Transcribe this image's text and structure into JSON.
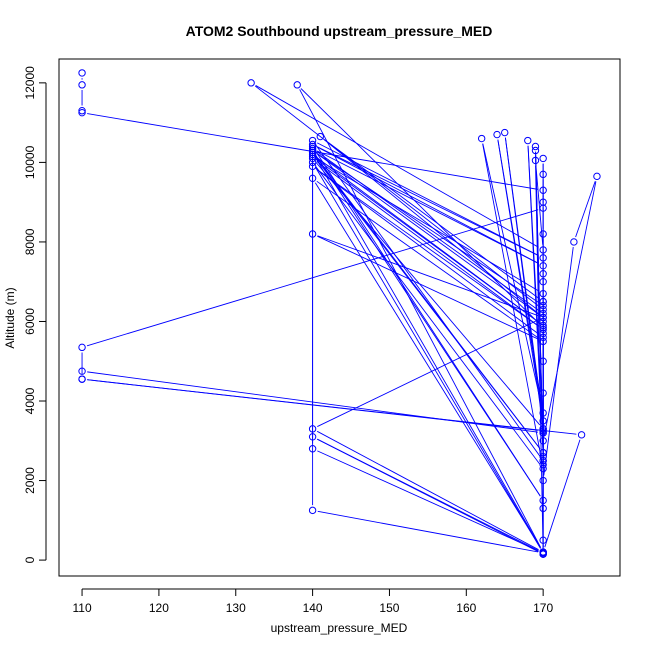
{
  "chart_data": {
    "type": "line",
    "title": "ATOM2 Southbound upstream_pressure_MED",
    "xlabel": "upstream_pressure_MED",
    "ylabel": "Altitude (m)",
    "xlim": [
      107,
      180
    ],
    "ylim": [
      -400,
      12600
    ],
    "xticks": [
      110,
      120,
      130,
      140,
      150,
      160,
      170
    ],
    "xtick_labels": [
      "110",
      "120",
      "130",
      "140",
      "150",
      "160",
      "170"
    ],
    "yticks": [
      0,
      2000,
      4000,
      6000,
      8000,
      10000,
      12000
    ],
    "ytick_labels": [
      "0",
      "2000",
      "4000",
      "6000",
      "8000",
      "10000",
      "12000"
    ],
    "series_color": "#0000ff",
    "marker": "open-circle",
    "grid": false,
    "x": [
      110,
      110,
      110,
      110,
      170,
      170,
      110,
      110,
      170,
      170,
      110,
      110,
      175,
      170,
      170,
      169,
      170,
      132,
      170,
      170,
      170,
      170,
      170,
      138,
      170,
      170,
      170,
      170,
      140,
      170,
      140,
      170,
      140,
      170,
      170,
      140,
      170,
      141,
      170,
      170,
      140,
      170,
      140,
      170,
      140,
      170,
      170,
      140,
      170,
      140,
      170,
      170,
      140,
      170,
      140,
      170,
      140,
      170,
      170,
      140,
      170,
      140,
      140,
      170,
      140,
      140,
      170,
      140,
      170,
      162,
      170,
      164,
      170,
      165,
      170,
      168,
      170,
      169,
      170,
      169,
      170,
      170,
      170,
      170,
      170,
      170,
      170,
      174,
      177,
      170,
      170,
      170,
      170,
      170,
      170,
      170
    ],
    "y": [
      12250,
      11950,
      11300,
      11250,
      9300,
      8850,
      5350,
      4550,
      3250,
      3200,
      4750,
      4550,
      3150,
      200,
      150,
      10050,
      7800,
      12000,
      6300,
      3200,
      150,
      500,
      200,
      11950,
      5850,
      6000,
      5700,
      2500,
      10550,
      7600,
      10450,
      7400,
      10350,
      6200,
      6400,
      10300,
      6100,
      10650,
      6500,
      200,
      10250,
      2700,
      10200,
      5900,
      10150,
      6700,
      3300,
      10100,
      5800,
      9900,
      5600,
      200,
      9600,
      5500,
      8200,
      6100,
      3300,
      200,
      150,
      3100,
      180,
      1250,
      10400,
      1500,
      10300,
      2800,
      180,
      10000,
      2300,
      10600,
      3700,
      10700,
      3500,
      10750,
      3300,
      10550,
      2700,
      10400,
      2600,
      10300,
      2500,
      10100,
      9000,
      8200,
      7000,
      5000,
      2000,
      8000,
      9650,
      3000,
      7200,
      1300,
      4200,
      2400,
      6500,
      9700
    ]
  }
}
